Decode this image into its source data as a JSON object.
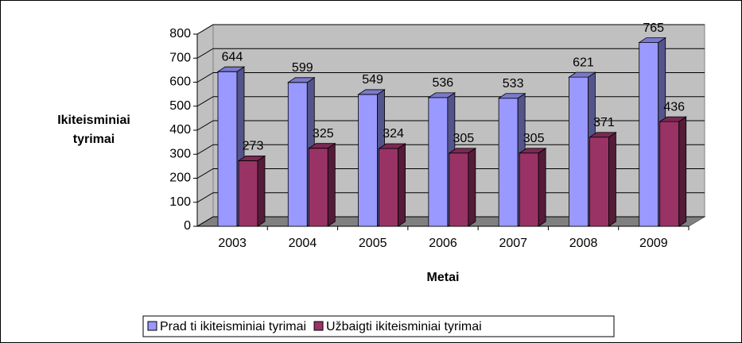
{
  "chart_data": {
    "type": "bar",
    "x_label": "Metai",
    "y_label": [
      "Ikiteisminiai",
      "tyrimai"
    ],
    "categories": [
      "2003",
      "2004",
      "2005",
      "2006",
      "2007",
      "2008",
      "2009"
    ],
    "series": [
      {
        "name": "Prad ti ikiteisminiai tyrimai",
        "color": "#9999ff",
        "values": [
          644,
          599,
          549,
          536,
          533,
          621,
          765
        ]
      },
      {
        "name": "Užbaigti ikiteisminiai tyrimai",
        "color": "#993366",
        "values": [
          273,
          325,
          324,
          305,
          305,
          371,
          436
        ]
      }
    ],
    "ylim": [
      0,
      800
    ],
    "yticks": [
      0,
      100,
      200,
      300,
      400,
      500,
      600,
      700,
      800
    ],
    "grid": true
  }
}
